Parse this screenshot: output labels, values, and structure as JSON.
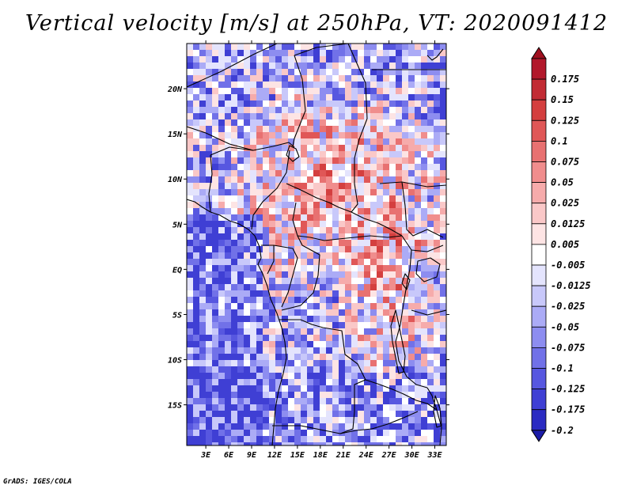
{
  "title": "Vertical velocity [m/s] at 250hPa, VT: 2020091412",
  "credit": "GrADS: IGES/COLA",
  "map": {
    "lon_range": [
      0.5,
      34.5
    ],
    "lat_range": [
      -19.5,
      25
    ],
    "x_ticks": [
      {
        "value": 3,
        "label": "3E"
      },
      {
        "value": 6,
        "label": "6E"
      },
      {
        "value": 9,
        "label": "9E"
      },
      {
        "value": 12,
        "label": "12E"
      },
      {
        "value": 15,
        "label": "15E"
      },
      {
        "value": 18,
        "label": "18E"
      },
      {
        "value": 21,
        "label": "21E"
      },
      {
        "value": 24,
        "label": "24E"
      },
      {
        "value": 27,
        "label": "27E"
      },
      {
        "value": 30,
        "label": "30E"
      },
      {
        "value": 33,
        "label": "33E"
      }
    ],
    "y_ticks": [
      {
        "value": 20,
        "label": "20N"
      },
      {
        "value": 15,
        "label": "15N"
      },
      {
        "value": 10,
        "label": "10N"
      },
      {
        "value": 5,
        "label": "5N"
      },
      {
        "value": 0,
        "label": "EQ"
      },
      {
        "value": -5,
        "label": "5S"
      },
      {
        "value": -10,
        "label": "10S"
      },
      {
        "value": -15,
        "label": "15S"
      }
    ]
  },
  "colorbar": {
    "levels": [
      {
        "label": "0.175",
        "color": "#b2182b"
      },
      {
        "label": "0.15",
        "color": "#c22b34"
      },
      {
        "label": "0.125",
        "color": "#d43f3f"
      },
      {
        "label": "0.1",
        "color": "#e05757"
      },
      {
        "label": "0.075",
        "color": "#e87171"
      },
      {
        "label": "0.05",
        "color": "#f08d8d"
      },
      {
        "label": "0.025",
        "color": "#f6abab"
      },
      {
        "label": "0.0125",
        "color": "#fac8c8"
      },
      {
        "label": "0.005",
        "color": "#fde4e4"
      },
      {
        "label": "-0.005",
        "color": "#ffffff"
      },
      {
        "label": "-0.0125",
        "color": "#e4e4fd"
      },
      {
        "label": "-0.025",
        "color": "#c8c8fa"
      },
      {
        "label": "-0.05",
        "color": "#ababf6"
      },
      {
        "label": "-0.075",
        "color": "#8d8df0"
      },
      {
        "label": "-0.1",
        "color": "#7171e8"
      },
      {
        "label": "-0.125",
        "color": "#5757e0"
      },
      {
        "label": "-0.175",
        "color": "#3f3fd4"
      },
      {
        "label": "-0.2",
        "color": "#2b2bc2"
      }
    ],
    "top_color": "#a01020",
    "bottom_color": "#1c1ca8"
  }
}
